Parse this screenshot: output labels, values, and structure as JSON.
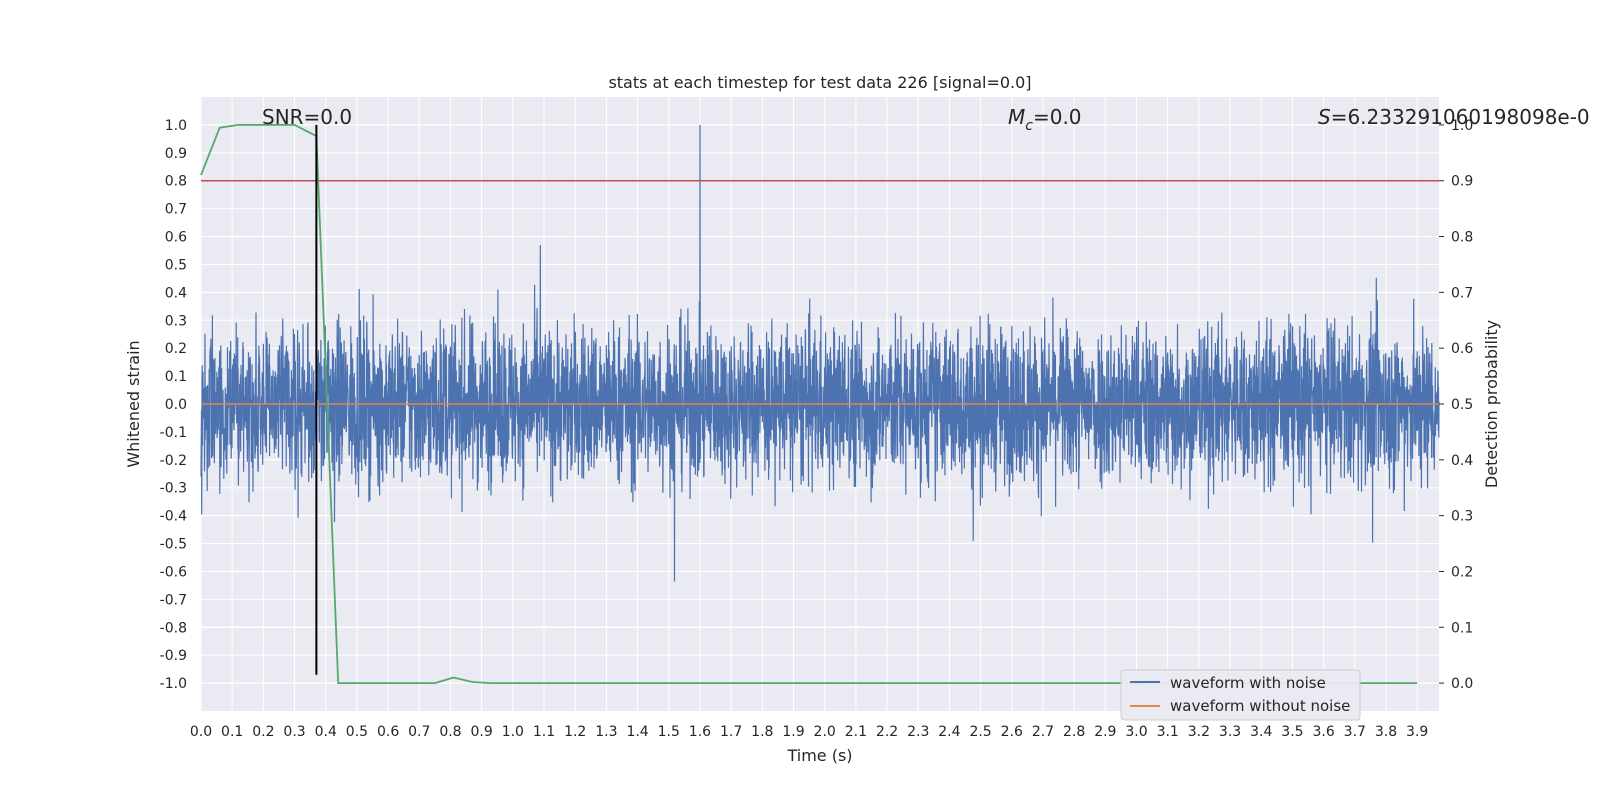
{
  "chart_data": {
    "type": "line",
    "title": "stats at each timestep for test data 226 [signal=0.0]",
    "xlabel": "Time (s)",
    "ylabel": "Whitened strain",
    "y2label": "Detection probability",
    "xlim": [
      0.0,
      3.97
    ],
    "ylim": [
      -1.1,
      1.1
    ],
    "y2lim": [
      -0.05,
      1.05
    ],
    "xticks": [
      "0.0",
      "0.1",
      "0.2",
      "0.3",
      "0.4",
      "0.5",
      "0.6",
      "0.7",
      "0.8",
      "0.9",
      "1.0",
      "1.1",
      "1.2",
      "1.3",
      "1.4",
      "1.5",
      "1.6",
      "1.7",
      "1.8",
      "1.9",
      "2.0",
      "2.1",
      "2.2",
      "2.3",
      "2.4",
      "2.5",
      "2.6",
      "2.7",
      "2.8",
      "2.9",
      "3.0",
      "3.1",
      "3.2",
      "3.3",
      "3.4",
      "3.5",
      "3.6",
      "3.7",
      "3.8",
      "3.9"
    ],
    "yticks": [
      "1.0",
      "0.9",
      "0.8",
      "0.7",
      "0.6",
      "0.5",
      "0.4",
      "0.3",
      "0.2",
      "0.1",
      "0.0",
      "-0.1",
      "-0.2",
      "-0.3",
      "-0.4",
      "-0.5",
      "-0.6",
      "-0.7",
      "-0.8",
      "-0.9",
      "-1.0"
    ],
    "y2ticks": [
      "1.0",
      "0.9",
      "0.8",
      "0.7",
      "0.6",
      "0.5",
      "0.4",
      "0.3",
      "0.2",
      "0.1",
      "0.0"
    ],
    "annotations": {
      "snr": "SNR=0.0",
      "mc": "=0.0",
      "mc_symbol": "M",
      "mc_sub": "c",
      "s": "=6.233291060198098e-0",
      "s_symbol": "S"
    },
    "series": [
      {
        "name": "waveform with noise",
        "color": "#4c72b0",
        "description": "dense whitened noise, roughly within -0.9..1.0 (estimated envelope)",
        "y_range": [
          -0.9,
          1.0
        ]
      },
      {
        "name": "waveform without noise",
        "color": "#dd8452",
        "values_const": 0.0
      },
      {
        "name": "detection probability",
        "color": "#55a868",
        "axis": "right",
        "x": [
          0.0,
          0.06,
          0.12,
          0.2,
          0.3,
          0.37,
          0.44,
          0.6,
          0.75,
          0.81,
          0.87,
          0.93,
          1.5,
          3.9
        ],
        "values": [
          0.91,
          0.995,
          1.0,
          1.0,
          1.0,
          0.98,
          0.0,
          0.0,
          0.0,
          0.01,
          0.002,
          0.0,
          0.0,
          0.0
        ]
      }
    ],
    "threshold": {
      "value": 0.9,
      "axis": "right",
      "color": "#c44e52"
    },
    "marker_line": {
      "x": 0.37,
      "y_from": -0.97,
      "y_to": 1.0,
      "color": "#000000"
    },
    "legend": {
      "placement": "lower-right",
      "entries": [
        {
          "label": "waveform with noise",
          "color": "#4c72b0"
        },
        {
          "label": "waveform without noise",
          "color": "#dd8452"
        }
      ]
    },
    "noise_seed": 226
  }
}
